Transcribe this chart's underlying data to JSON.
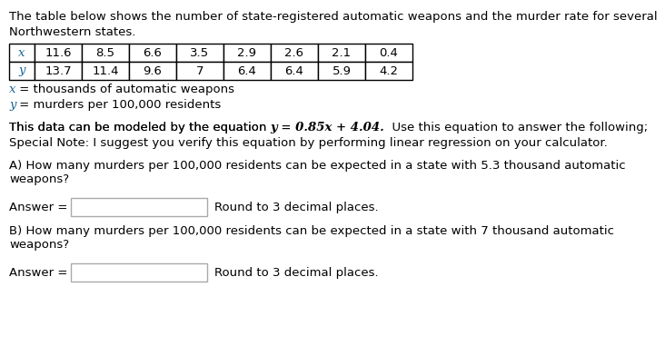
{
  "title_line1": "The table below shows the number of state-registered automatic weapons and the murder rate for several",
  "title_line2": "Northwestern states.",
  "x_values": [
    "11.6",
    "8.5",
    "6.6",
    "3.5",
    "2.9",
    "2.6",
    "2.1",
    "0.4"
  ],
  "y_values": [
    "13.7",
    "11.4",
    "9.6",
    "7",
    "6.4",
    "6.4",
    "5.9",
    "4.2"
  ],
  "x_label_italic": "x",
  "x_label_rest": " = thousands of automatic weapons",
  "y_label_italic": "y",
  "y_label_rest": " = murders per 100,000 residents",
  "eq_pre": "This data can be modeled by the equation ",
  "eq_math": "y = 0.85x + 4.04.",
  "eq_post": "  Use this equation to answer the following;",
  "special_note": "Special Note: I suggest you verify this equation by performing linear regression on your calculator.",
  "q_a": "A) How many murders per 100,000 residents can be expected in a state with 5.3 thousand automatic\nweapons?",
  "q_b": "B) How many murders per 100,000 residents can be expected in a state with 7 thousand automatic\nweapons?",
  "answer_label": "Answer =",
  "round_note": "Round to 3 decimal places.",
  "bg_color": "#ffffff",
  "text_color": "#000000",
  "blue_color": "#1a6496",
  "table_border_color": "#000000",
  "font_size": 9.5,
  "font_size_table": 9.5
}
